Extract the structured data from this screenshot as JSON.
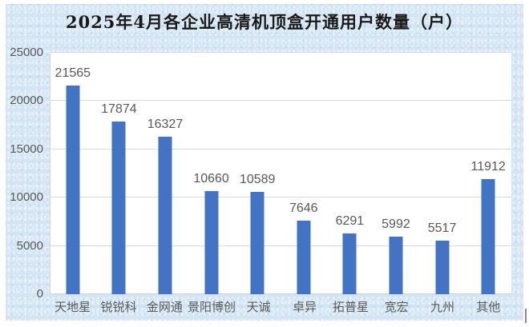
{
  "colors": {
    "bar": "#4273c4",
    "panel_background": "#d3e5f4",
    "plot_background": "#ffffff",
    "gridline": "#d9d9d9",
    "axis_text": "#595959",
    "title_text": "#1a1a1a"
  },
  "chart_data": {
    "type": "bar",
    "title": "2025年4月各企业高清机顶盒开通用户数量（户）",
    "categories": [
      "天地星",
      "锐锐科",
      "金网通",
      "景阳博创",
      "天诚",
      "卓异",
      "拓普星",
      "宽宏",
      "九州",
      "其他"
    ],
    "values": [
      21565,
      17874,
      16327,
      10660,
      10589,
      7646,
      6291,
      5992,
      5517,
      11912
    ],
    "data_labels": [
      21565,
      17874,
      16327,
      10660,
      10589,
      7646,
      6291,
      5992,
      5517,
      11912
    ],
    "xlabel": "",
    "ylabel": "",
    "ylim": [
      0,
      25000
    ],
    "yticks": [
      0,
      5000,
      10000,
      15000,
      20000,
      25000
    ],
    "grid": true,
    "legend": false,
    "data_labels_shown": true
  }
}
